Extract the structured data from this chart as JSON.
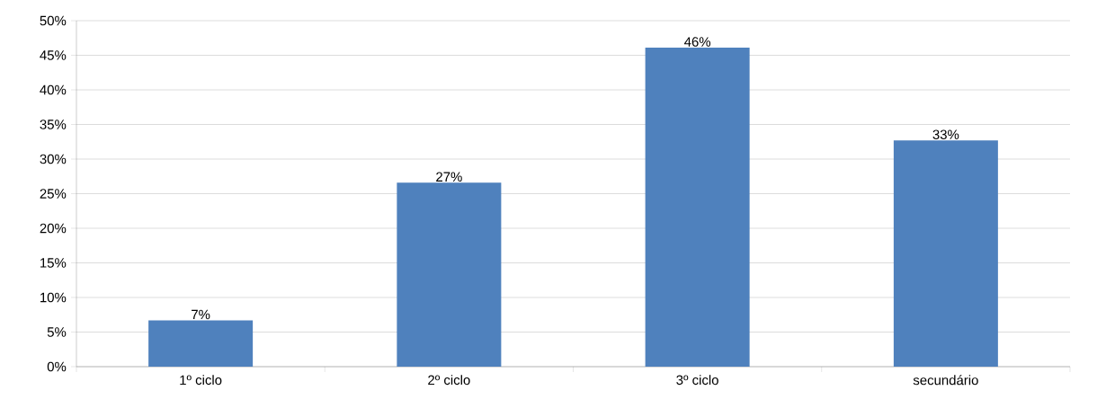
{
  "chart_data": {
    "type": "bar",
    "categories": [
      "1º ciclo",
      "2º ciclo",
      "3º ciclo",
      "secundário"
    ],
    "values": [
      6.7,
      26.6,
      46.1,
      32.7
    ],
    "value_labels": [
      "7%",
      "27%",
      "46%",
      "33%"
    ],
    "color": "#4f81bd",
    "ylim": [
      0,
      50
    ],
    "yticks": [
      {
        "value": 0,
        "label": "0%"
      },
      {
        "value": 5,
        "label": "5%"
      },
      {
        "value": 10,
        "label": "10%"
      },
      {
        "value": 15,
        "label": "15%"
      },
      {
        "value": 20,
        "label": "20%"
      },
      {
        "value": 25,
        "label": "25%"
      },
      {
        "value": 30,
        "label": "30%"
      },
      {
        "value": 35,
        "label": "35%"
      },
      {
        "value": 40,
        "label": "40%"
      },
      {
        "value": 45,
        "label": "45%"
      },
      {
        "value": 50,
        "label": "50%"
      }
    ],
    "grid": "y"
  }
}
